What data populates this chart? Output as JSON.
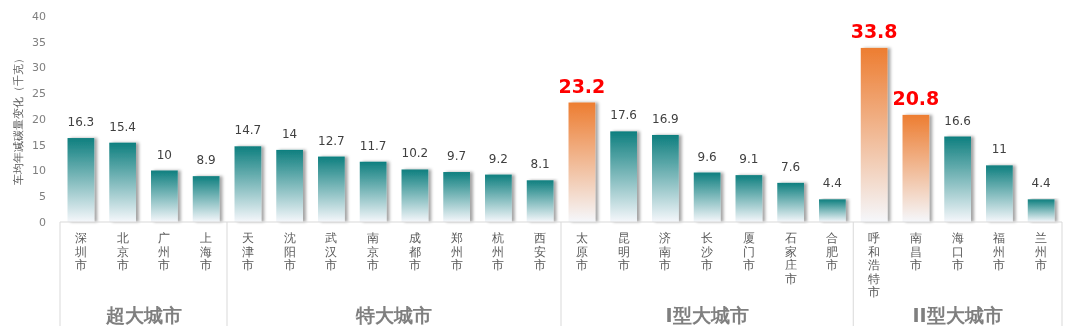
{
  "chart_data": {
    "type": "bar",
    "ylabel": "车均年减碳量变化（千克）",
    "categories": [
      "深圳市",
      "北京市",
      "广州市",
      "上海市",
      "天津市",
      "沈阳市",
      "武汉市",
      "南京市",
      "成都市",
      "郑州市",
      "杭州市",
      "西安市",
      "太原市",
      "昆明市",
      "济南市",
      "长沙市",
      "厦门市",
      "石家庄市",
      "合肥市",
      "呼和浩特市",
      "南昌市",
      "海口市",
      "福州市",
      "兰州市"
    ],
    "values": [
      16.3,
      15.4,
      10,
      8.9,
      14.7,
      14,
      12.7,
      11.7,
      10.2,
      9.7,
      9.2,
      8.1,
      23.2,
      17.6,
      16.9,
      9.6,
      9.1,
      7.6,
      4.4,
      33.8,
      20.8,
      16.6,
      11,
      4.4
    ],
    "colors": [
      "#0e7f7f",
      "#0e7f7f",
      "#0e7f7f",
      "#0e7f7f",
      "#0e7f7f",
      "#0e7f7f",
      "#0e7f7f",
      "#0e7f7f",
      "#0e7f7f",
      "#0e7f7f",
      "#0e7f7f",
      "#0e7f7f",
      "#ed7d31",
      "#0e7f7f",
      "#0e7f7f",
      "#0e7f7f",
      "#0e7f7f",
      "#0e7f7f",
      "#0e7f7f",
      "#ed7d31",
      "#ed7d31",
      "#0e7f7f",
      "#0e7f7f",
      "#0e7f7f"
    ],
    "ylim": [
      0,
      40
    ],
    "yticks": [
      0,
      5,
      10,
      15,
      20,
      25,
      30,
      35,
      40
    ],
    "grid": false,
    "data_labels": true,
    "annotations": [
      "超大城市",
      "特大城市",
      "I型大城市",
      "II型大城市"
    ]
  }
}
